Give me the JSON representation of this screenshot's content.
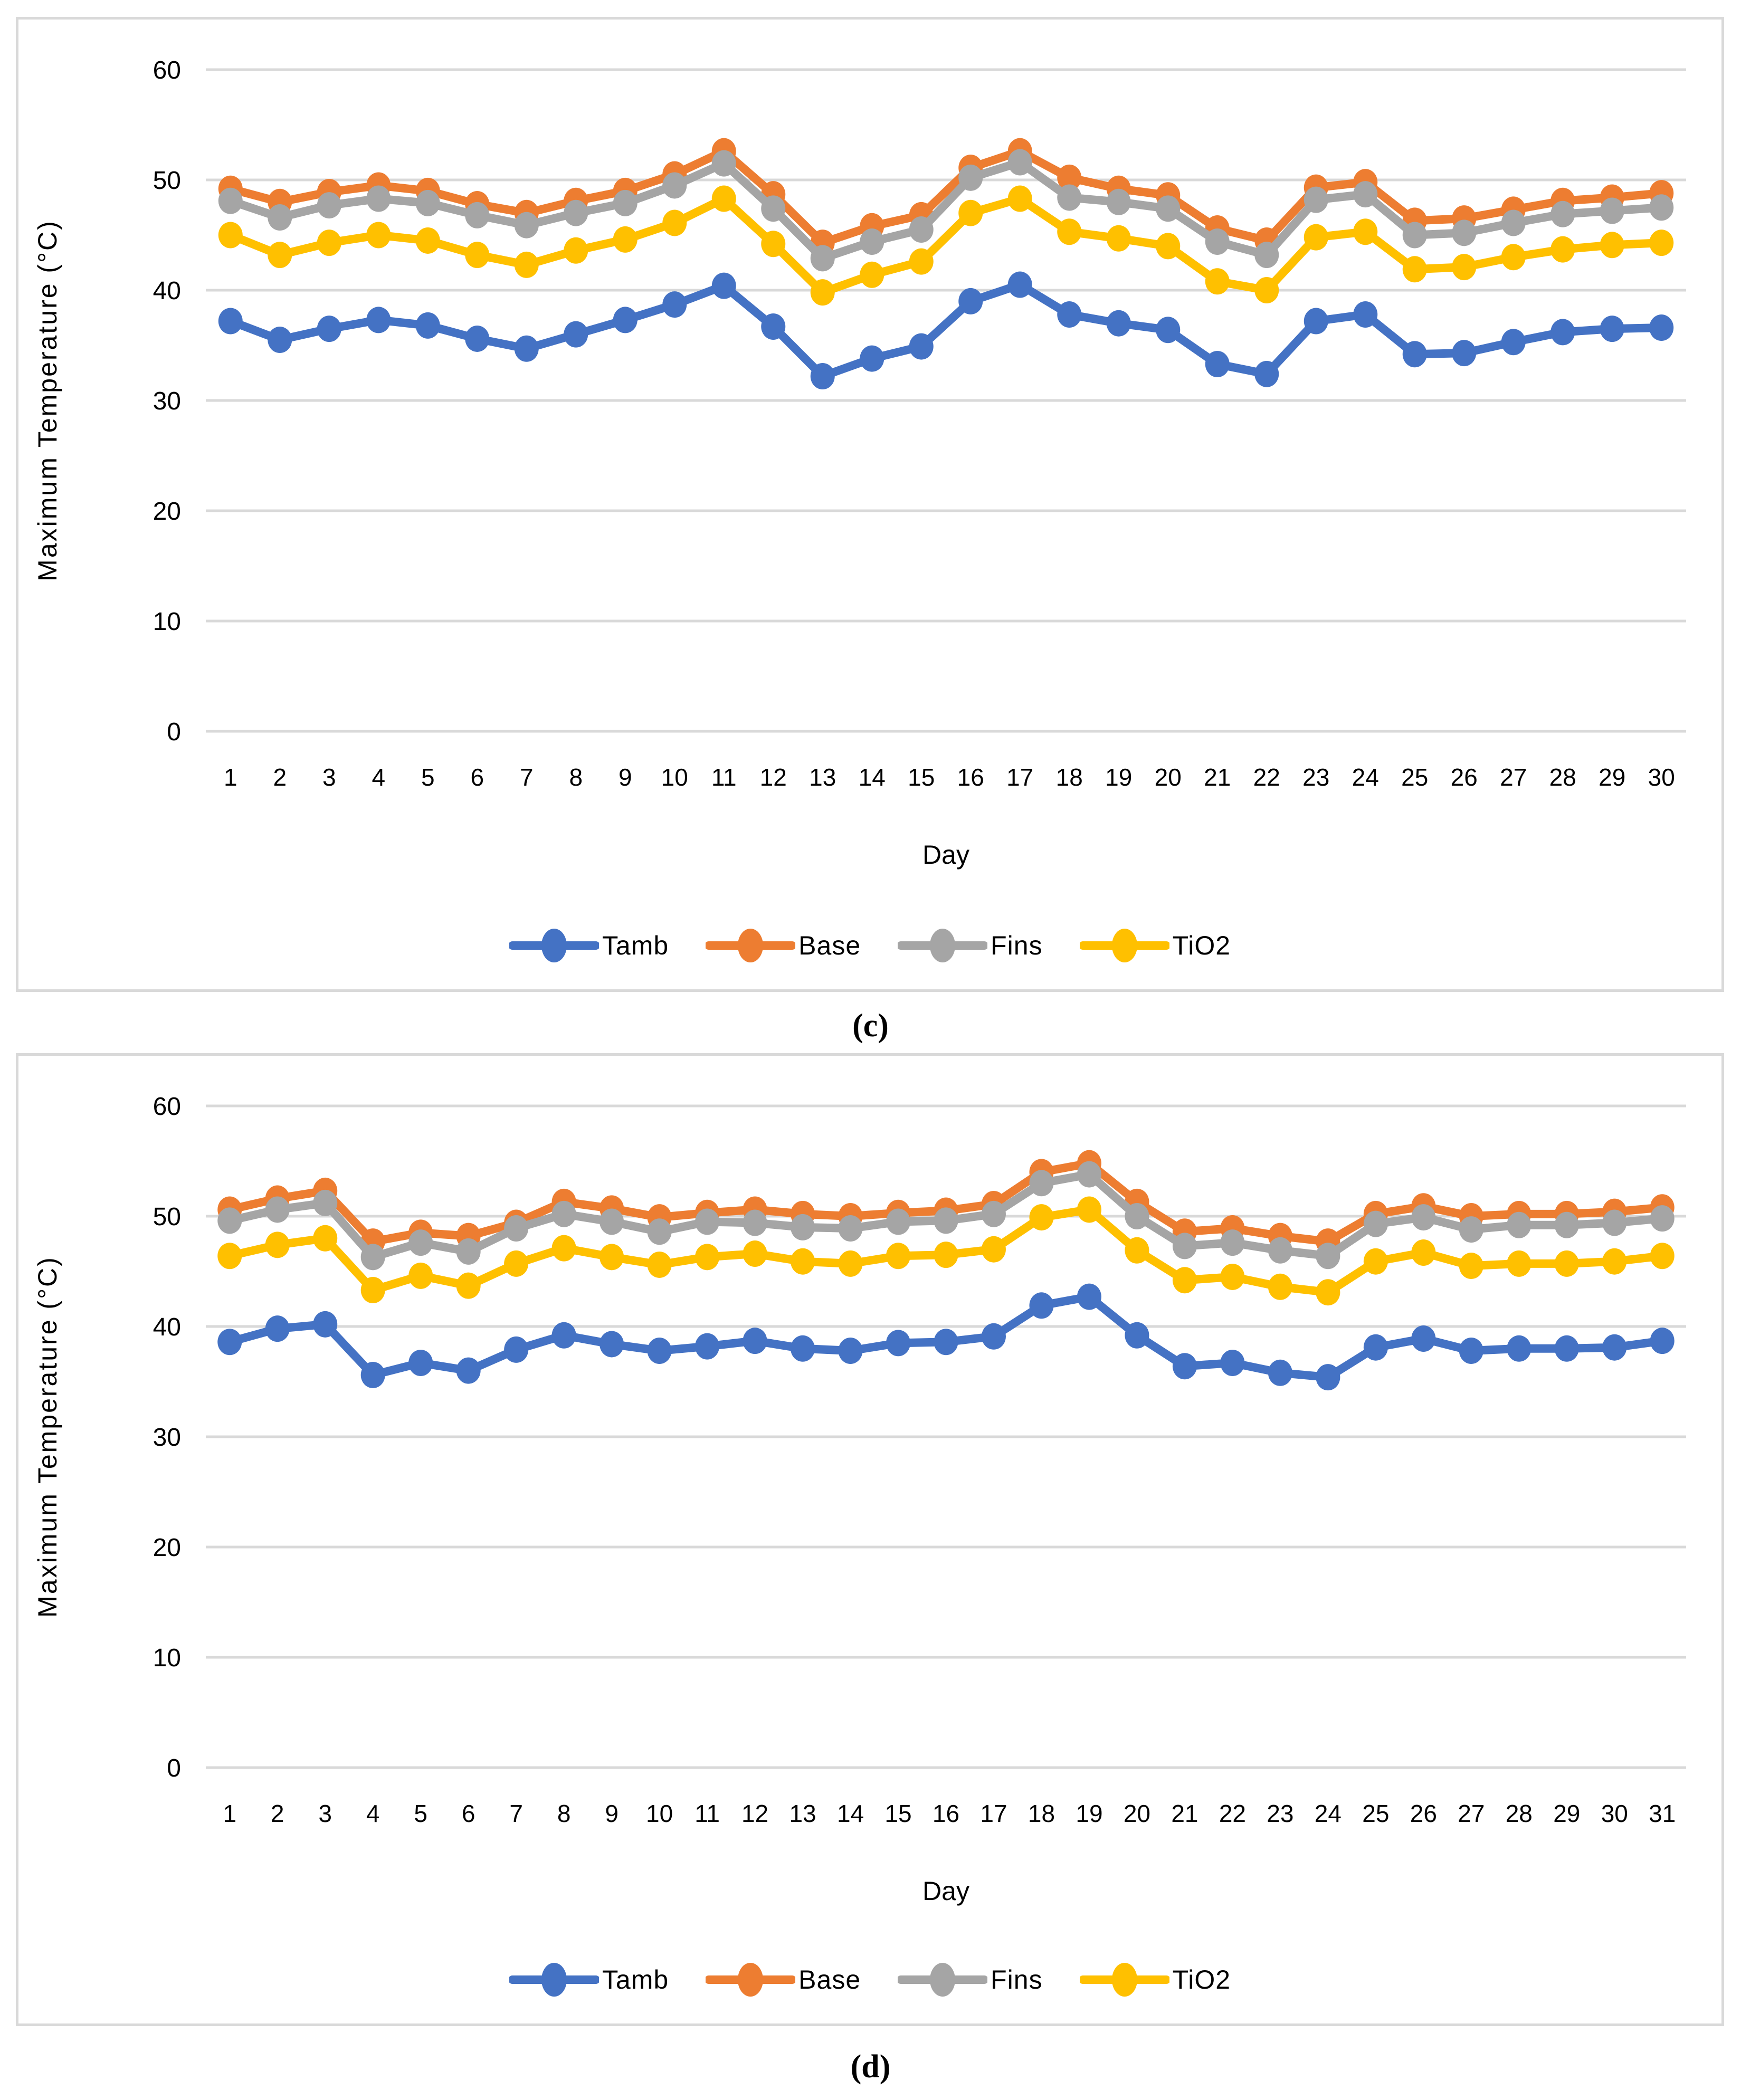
{
  "page": {
    "background": "#ffffff",
    "border_color": "#d9d9d9",
    "gridline_color": "#d9d9d9"
  },
  "chart_data": [
    {
      "id": "c",
      "type": "line",
      "caption": "(c)",
      "xlabel": "Day",
      "ylabel": "Maximum Temperature (°C)",
      "ylim": [
        0,
        60
      ],
      "yticks": [
        0,
        10,
        20,
        30,
        40,
        50,
        60
      ],
      "grid": true,
      "legend_position": "bottom",
      "x": [
        1,
        2,
        3,
        4,
        5,
        6,
        7,
        8,
        9,
        10,
        11,
        12,
        13,
        14,
        15,
        16,
        17,
        18,
        19,
        20,
        21,
        22,
        23,
        24,
        25,
        26,
        27,
        28,
        29,
        30
      ],
      "series": [
        {
          "name": "Tamb",
          "color": "#4472C4",
          "values": [
            37.2,
            35.5,
            36.5,
            37.3,
            36.8,
            35.6,
            34.7,
            36.0,
            37.3,
            38.7,
            40.4,
            36.7,
            32.2,
            33.8,
            34.9,
            39.0,
            40.5,
            37.8,
            37.0,
            36.4,
            33.3,
            32.4,
            37.2,
            37.8,
            34.2,
            34.3,
            35.3,
            36.2,
            36.5,
            36.6
          ]
        },
        {
          "name": "Base",
          "color": "#ED7D31",
          "values": [
            49.2,
            48.0,
            48.9,
            49.5,
            49.0,
            47.8,
            47.0,
            48.1,
            49.0,
            50.5,
            52.6,
            48.7,
            44.3,
            45.8,
            46.8,
            51.1,
            52.6,
            50.2,
            49.2,
            48.6,
            45.6,
            44.5,
            49.3,
            49.8,
            46.3,
            46.5,
            47.3,
            48.1,
            48.4,
            48.8
          ]
        },
        {
          "name": "Fins",
          "color": "#A5A5A5",
          "values": [
            48.1,
            46.6,
            47.7,
            48.3,
            47.9,
            46.8,
            45.9,
            47.0,
            47.9,
            49.5,
            51.5,
            47.4,
            42.9,
            44.4,
            45.5,
            50.2,
            51.6,
            48.4,
            48.0,
            47.4,
            44.4,
            43.2,
            48.2,
            48.7,
            45.0,
            45.2,
            46.1,
            46.9,
            47.2,
            47.5
          ]
        },
        {
          "name": "TiO2",
          "color": "#FFC000",
          "values": [
            45.0,
            43.2,
            44.3,
            45.0,
            44.5,
            43.2,
            42.3,
            43.6,
            44.6,
            46.1,
            48.3,
            44.2,
            39.8,
            41.4,
            42.6,
            47.0,
            48.3,
            45.3,
            44.7,
            44.0,
            40.8,
            40.0,
            44.8,
            45.3,
            41.9,
            42.1,
            43.0,
            43.7,
            44.1,
            44.3
          ]
        }
      ]
    },
    {
      "id": "d",
      "type": "line",
      "caption": "(d)",
      "xlabel": "Day",
      "ylabel": "Maximum Temperature (°C)",
      "ylim": [
        0,
        60
      ],
      "yticks": [
        0,
        10,
        20,
        30,
        40,
        50,
        60
      ],
      "grid": true,
      "legend_position": "bottom",
      "x": [
        1,
        2,
        3,
        4,
        5,
        6,
        7,
        8,
        9,
        10,
        11,
        12,
        13,
        14,
        15,
        16,
        17,
        18,
        19,
        20,
        21,
        22,
        23,
        24,
        25,
        26,
        27,
        28,
        29,
        30,
        31
      ],
      "series": [
        {
          "name": "Tamb",
          "color": "#4472C4",
          "values": [
            38.6,
            39.8,
            40.2,
            35.6,
            36.7,
            36.0,
            37.9,
            39.2,
            38.4,
            37.8,
            38.2,
            38.7,
            38.0,
            37.8,
            38.5,
            38.6,
            39.1,
            41.9,
            42.7,
            39.2,
            36.4,
            36.7,
            35.8,
            35.4,
            38.1,
            38.9,
            37.8,
            38.0,
            38.0,
            38.1,
            38.7
          ]
        },
        {
          "name": "Base",
          "color": "#ED7D31",
          "values": [
            50.6,
            51.6,
            52.3,
            47.7,
            48.5,
            48.2,
            49.4,
            51.3,
            50.7,
            49.9,
            50.3,
            50.6,
            50.2,
            50.0,
            50.3,
            50.5,
            51.1,
            54.0,
            54.8,
            51.3,
            48.6,
            48.9,
            48.2,
            47.7,
            50.2,
            50.9,
            50.0,
            50.2,
            50.2,
            50.4,
            50.8
          ]
        },
        {
          "name": "Fins",
          "color": "#A5A5A5",
          "values": [
            49.6,
            50.6,
            51.2,
            46.3,
            47.6,
            46.8,
            48.9,
            50.2,
            49.5,
            48.6,
            49.5,
            49.4,
            49.0,
            48.9,
            49.5,
            49.6,
            50.2,
            53.0,
            53.8,
            50.0,
            47.3,
            47.6,
            46.9,
            46.4,
            49.3,
            49.9,
            48.8,
            49.2,
            49.2,
            49.4,
            49.8
          ]
        },
        {
          "name": "TiO2",
          "color": "#FFC000",
          "values": [
            46.4,
            47.4,
            48.0,
            43.3,
            44.6,
            43.7,
            45.7,
            47.1,
            46.3,
            45.6,
            46.3,
            46.6,
            45.9,
            45.7,
            46.4,
            46.5,
            47.0,
            49.9,
            50.6,
            46.9,
            44.2,
            44.5,
            43.6,
            43.1,
            45.9,
            46.7,
            45.5,
            45.7,
            45.7,
            45.9,
            46.4
          ]
        }
      ]
    }
  ]
}
